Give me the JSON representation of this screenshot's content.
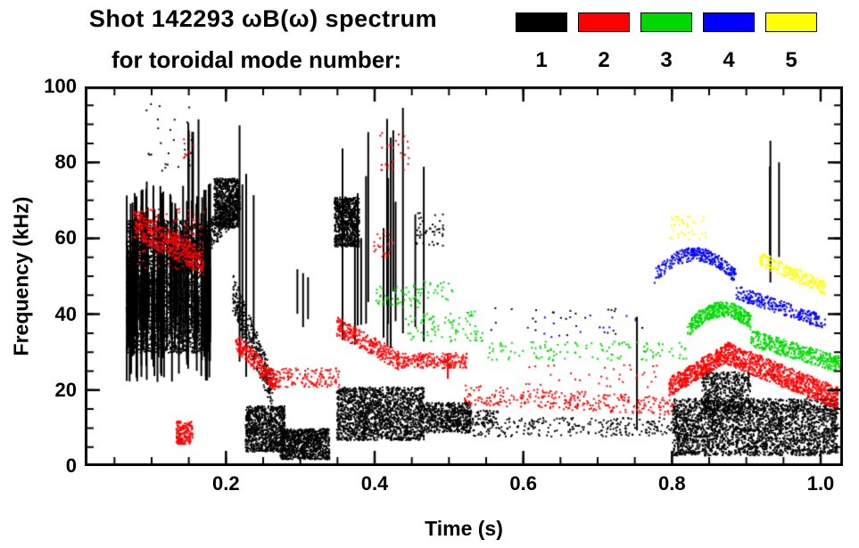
{
  "chart_data": {
    "type": "scatter",
    "title": "Shot 142293 ωB(ω) spectrum",
    "subtitle": "for toroidal mode number:",
    "xlabel": "Time (s)",
    "ylabel": "Frequency (kHz)",
    "xlim": [
      0.01,
      1.03
    ],
    "ylim": [
      0,
      100
    ],
    "x_ticks": [
      {
        "v": 0.2,
        "label": "0.2"
      },
      {
        "v": 0.4,
        "label": "0.4"
      },
      {
        "v": 0.6,
        "label": "0.6"
      },
      {
        "v": 0.8,
        "label": "0.8"
      },
      {
        "v": 1.0,
        "label": "1.0"
      }
    ],
    "y_ticks": [
      {
        "v": 0,
        "label": "0"
      },
      {
        "v": 20,
        "label": "20"
      },
      {
        "v": 40,
        "label": "40"
      },
      {
        "v": 60,
        "label": "60"
      },
      {
        "v": 80,
        "label": "80"
      },
      {
        "v": 100,
        "label": "100"
      }
    ],
    "x_minor_step": 0.05,
    "y_minor_step": 5,
    "legend": [
      {
        "mode": 1,
        "label": "1",
        "color": "#000000"
      },
      {
        "mode": 2,
        "label": "2",
        "color": "#ff0000"
      },
      {
        "mode": 3,
        "label": "3",
        "color": "#00d900"
      },
      {
        "mode": 4,
        "label": "4",
        "color": "#0000ff"
      },
      {
        "mode": 5,
        "label": "5",
        "color": "#ffff00"
      }
    ],
    "bands": [
      {
        "mode": 1,
        "type": "cloud",
        "t": [
          0.065,
          0.175
        ],
        "f": [
          30,
          65
        ],
        "n": 2600,
        "s": 2
      },
      {
        "mode": 1,
        "type": "streaks",
        "t": [
          0.065,
          0.18
        ],
        "k": 110,
        "f_lo": [
          22,
          40
        ],
        "f_hi": [
          45,
          76
        ],
        "s": 2
      },
      {
        "mode": 1,
        "type": "streaks",
        "t": [
          0.142,
          0.163
        ],
        "k": 5,
        "f_lo": [
          55,
          65
        ],
        "f_hi": [
          88,
          98
        ],
        "s": 2
      },
      {
        "mode": 1,
        "type": "curve",
        "t": [
          0.15,
          0.218
        ],
        "f0": 55,
        "f1": 70,
        "spread": 4,
        "n": 420,
        "s": 2
      },
      {
        "mode": 1,
        "type": "cloud",
        "t": [
          0.183,
          0.216
        ],
        "f": [
          63,
          76
        ],
        "n": 700,
        "s": 2
      },
      {
        "mode": 1,
        "type": "streaks",
        "t": [
          0.216,
          0.238
        ],
        "k": 4,
        "f_lo": [
          22,
          35
        ],
        "f_hi": [
          70,
          94
        ],
        "s": 2
      },
      {
        "mode": 1,
        "type": "curve",
        "t": [
          0.208,
          0.262
        ],
        "f0": 46,
        "f1": 20,
        "spread": 5,
        "n": 340,
        "s": 2
      },
      {
        "mode": 1,
        "type": "cloud",
        "t": [
          0.225,
          0.278
        ],
        "f": [
          4,
          16
        ],
        "n": 900,
        "s": 2
      },
      {
        "mode": 1,
        "type": "cloud",
        "t": [
          0.272,
          0.338
        ],
        "f": [
          2,
          10
        ],
        "n": 900,
        "s": 2
      },
      {
        "mode": 1,
        "type": "cloud",
        "t": [
          0.345,
          0.378
        ],
        "f": [
          58,
          71
        ],
        "n": 750,
        "s": 2
      },
      {
        "mode": 1,
        "type": "streaks",
        "t": [
          0.355,
          0.465
        ],
        "k": 16,
        "f_lo": [
          30,
          46
        ],
        "f_hi": [
          60,
          95
        ],
        "s": 2
      },
      {
        "mode": 1,
        "type": "cloud",
        "t": [
          0.348,
          0.465
        ],
        "f": [
          7,
          21
        ],
        "n": 1700,
        "s": 2
      },
      {
        "mode": 1,
        "type": "cloud",
        "t": [
          0.462,
          0.528
        ],
        "f": [
          9,
          17
        ],
        "n": 550,
        "s": 2
      },
      {
        "mode": 1,
        "type": "cloud",
        "t": [
          0.5,
          0.565
        ],
        "f": [
          11,
          15
        ],
        "n": 130,
        "s": 2
      },
      {
        "mode": 1,
        "type": "cloud",
        "t": [
          0.52,
          0.82
        ],
        "f": [
          8,
          13
        ],
        "n": 280,
        "s": 2
      },
      {
        "mode": 1,
        "type": "streaks",
        "t": [
          0.746,
          0.754
        ],
        "k": 1,
        "f_lo": [
          9,
          11
        ],
        "f_hi": [
          38,
          42
        ],
        "s": 2
      },
      {
        "mode": 1,
        "type": "cloud",
        "t": [
          0.55,
          0.76
        ],
        "f": [
          34,
          42
        ],
        "n": 26,
        "s": 2
      },
      {
        "mode": 1,
        "type": "cloud",
        "t": [
          0.8,
          1.022
        ],
        "f": [
          3,
          18
        ],
        "n": 2800,
        "s": 2
      },
      {
        "mode": 1,
        "type": "cloud",
        "t": [
          0.838,
          0.905
        ],
        "f": [
          14,
          25
        ],
        "n": 520,
        "s": 2
      },
      {
        "mode": 1,
        "type": "streaks",
        "t": [
          0.93,
          0.952
        ],
        "k": 3,
        "f_lo": [
          45,
          60
        ],
        "f_hi": [
          78,
          92
        ],
        "s": 2
      },
      {
        "mode": 1,
        "type": "cloud",
        "t": [
          0.09,
          0.155
        ],
        "f": [
          78,
          96
        ],
        "n": 26,
        "s": 2
      },
      {
        "mode": 1,
        "type": "streaks",
        "t": [
          0.292,
          0.318
        ],
        "k": 3,
        "f_lo": [
          36,
          42
        ],
        "f_hi": [
          46,
          52
        ],
        "s": 2
      },
      {
        "mode": 1,
        "type": "cloud",
        "t": [
          0.455,
          0.492
        ],
        "f": [
          58,
          67
        ],
        "n": 45,
        "s": 2
      },
      {
        "mode": 2,
        "type": "curve",
        "t": [
          0.075,
          0.168
        ],
        "f0": 64,
        "f1": 54,
        "spread": 3.5,
        "n": 420,
        "s": 2
      },
      {
        "mode": 2,
        "type": "cloud",
        "t": [
          0.08,
          0.17
        ],
        "f": [
          52,
          68
        ],
        "n": 110,
        "s": 2
      },
      {
        "mode": 2,
        "type": "cloud",
        "t": [
          0.132,
          0.154
        ],
        "f": [
          6,
          12
        ],
        "n": 170,
        "s": 2
      },
      {
        "mode": 2,
        "type": "curve",
        "t": [
          0.212,
          0.268
        ],
        "f0": 33,
        "f1": 22,
        "spread": 2.5,
        "n": 240,
        "s": 2
      },
      {
        "mode": 2,
        "type": "cloud",
        "t": [
          0.258,
          0.352
        ],
        "f": [
          21,
          26
        ],
        "n": 150,
        "s": 2
      },
      {
        "mode": 2,
        "type": "curve",
        "t": [
          0.348,
          0.432
        ],
        "f0": 37,
        "f1": 28,
        "spread": 2.5,
        "n": 300,
        "s": 2
      },
      {
        "mode": 2,
        "type": "cloud",
        "t": [
          0.43,
          0.523
        ],
        "f": [
          26,
          30
        ],
        "n": 240,
        "s": 2
      },
      {
        "mode": 2,
        "type": "streaks",
        "t": [
          0.497,
          0.505
        ],
        "k": 1,
        "f_lo": [
          21,
          23
        ],
        "f_hi": [
          28,
          31
        ],
        "s": 2
      },
      {
        "mode": 2,
        "type": "curve",
        "t": [
          0.52,
          0.8
        ],
        "f0": 19,
        "f1": 16,
        "spread": 2.5,
        "n": 300,
        "s": 2
      },
      {
        "mode": 2,
        "type": "cloud",
        "t": [
          0.6,
          0.78
        ],
        "f": [
          21,
          27
        ],
        "n": 36,
        "s": 2
      },
      {
        "mode": 2,
        "type": "curve",
        "t": [
          0.795,
          0.872
        ],
        "f0": 21,
        "f1": 30,
        "spread": 2.5,
        "n": 480,
        "s": 2
      },
      {
        "mode": 2,
        "type": "curve",
        "t": [
          0.872,
          1.022
        ],
        "f0": 30,
        "f1": 18,
        "spread": 3,
        "n": 900,
        "s": 2
      },
      {
        "mode": 2,
        "type": "cloud",
        "t": [
          0.405,
          0.447
        ],
        "f": [
          78,
          88
        ],
        "n": 28,
        "s": 2
      },
      {
        "mode": 2,
        "type": "cloud",
        "t": [
          0.398,
          0.425
        ],
        "f": [
          55,
          62
        ],
        "n": 24,
        "s": 2
      },
      {
        "mode": 2,
        "type": "cloud",
        "t": [
          0.142,
          0.16
        ],
        "f": [
          80,
          88
        ],
        "n": 10,
        "s": 2
      },
      {
        "mode": 3,
        "type": "cloud",
        "t": [
          0.398,
          0.462
        ],
        "f": [
          42,
          48
        ],
        "n": 60,
        "s": 2
      },
      {
        "mode": 3,
        "type": "cloud",
        "t": [
          0.44,
          0.545
        ],
        "f": [
          33,
          41
        ],
        "n": 90,
        "s": 2
      },
      {
        "mode": 3,
        "type": "cloud",
        "t": [
          0.55,
          0.82
        ],
        "f": [
          28,
          33
        ],
        "n": 120,
        "s": 2
      },
      {
        "mode": 3,
        "type": "curve",
        "t": [
          0.82,
          0.905
        ],
        "f0": 36,
        "f1": 38,
        "f_mid": 46,
        "spread": 2,
        "n": 430,
        "s": 2
      },
      {
        "mode": 3,
        "type": "curve",
        "t": [
          0.905,
          1.025
        ],
        "f0": 34,
        "f1": 27,
        "spread": 2.2,
        "n": 430,
        "s": 2
      },
      {
        "mode": 3,
        "type": "cloud",
        "t": [
          0.46,
          0.505
        ],
        "f": [
          44,
          49
        ],
        "n": 22,
        "s": 2
      },
      {
        "mode": 4,
        "type": "curve",
        "t": [
          0.775,
          0.885
        ],
        "f0": 50,
        "f1": 50,
        "f_mid": 62,
        "spread": 1.8,
        "n": 320,
        "s": 2
      },
      {
        "mode": 4,
        "type": "curve",
        "t": [
          0.885,
          1.005
        ],
        "f0": 46,
        "f1": 38,
        "spread": 1.8,
        "n": 280,
        "s": 2
      },
      {
        "mode": 4,
        "type": "cloud",
        "t": [
          0.55,
          0.75
        ],
        "f": [
          34,
          40
        ],
        "n": 16,
        "s": 2
      },
      {
        "mode": 5,
        "type": "cloud",
        "t": [
          0.795,
          0.845
        ],
        "f": [
          60,
          66
        ],
        "n": 40,
        "s": 2
      },
      {
        "mode": 5,
        "type": "curve",
        "t": [
          0.915,
          1.005
        ],
        "f0": 55,
        "f1": 47,
        "spread": 1.8,
        "n": 210,
        "s": 2
      }
    ]
  }
}
